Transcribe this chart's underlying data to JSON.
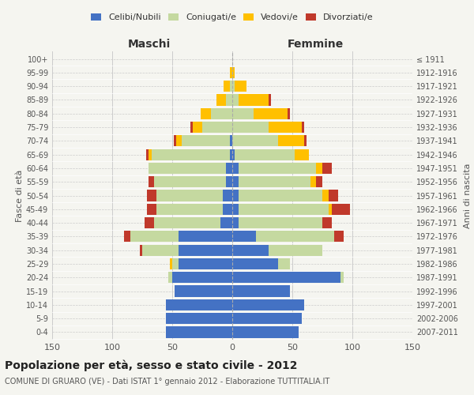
{
  "age_groups": [
    "0-4",
    "5-9",
    "10-14",
    "15-19",
    "20-24",
    "25-29",
    "30-34",
    "35-39",
    "40-44",
    "45-49",
    "50-54",
    "55-59",
    "60-64",
    "65-69",
    "70-74",
    "75-79",
    "80-84",
    "85-89",
    "90-94",
    "95-99",
    "100+"
  ],
  "birth_years": [
    "2007-2011",
    "2002-2006",
    "1997-2001",
    "1992-1996",
    "1987-1991",
    "1982-1986",
    "1977-1981",
    "1972-1976",
    "1967-1971",
    "1962-1966",
    "1957-1961",
    "1952-1956",
    "1947-1951",
    "1942-1946",
    "1937-1941",
    "1932-1936",
    "1927-1931",
    "1922-1926",
    "1917-1921",
    "1912-1916",
    "≤ 1911"
  ],
  "maschi": {
    "celibi": [
      55,
      55,
      55,
      48,
      50,
      45,
      45,
      45,
      10,
      8,
      8,
      5,
      5,
      2,
      2,
      0,
      0,
      0,
      0,
      0,
      0
    ],
    "coniugati": [
      0,
      0,
      0,
      0,
      3,
      5,
      30,
      40,
      55,
      55,
      55,
      60,
      65,
      65,
      40,
      25,
      18,
      5,
      2,
      0,
      0
    ],
    "vedovi": [
      0,
      0,
      0,
      0,
      0,
      2,
      0,
      0,
      0,
      0,
      0,
      0,
      0,
      3,
      5,
      8,
      8,
      8,
      5,
      2,
      0
    ],
    "divorziati": [
      0,
      0,
      0,
      0,
      0,
      0,
      2,
      5,
      8,
      8,
      8,
      5,
      0,
      2,
      2,
      2,
      0,
      0,
      0,
      0,
      0
    ]
  },
  "femmine": {
    "nubili": [
      55,
      58,
      60,
      48,
      90,
      38,
      30,
      20,
      5,
      5,
      5,
      5,
      5,
      2,
      0,
      0,
      0,
      0,
      0,
      0,
      0
    ],
    "coniugate": [
      0,
      0,
      0,
      0,
      3,
      10,
      45,
      65,
      70,
      75,
      70,
      60,
      65,
      50,
      38,
      30,
      18,
      5,
      2,
      0,
      0
    ],
    "vedove": [
      0,
      0,
      0,
      0,
      0,
      0,
      0,
      0,
      0,
      3,
      5,
      5,
      5,
      12,
      22,
      28,
      28,
      25,
      10,
      2,
      0
    ],
    "divorziate": [
      0,
      0,
      0,
      0,
      0,
      0,
      0,
      8,
      8,
      15,
      8,
      5,
      8,
      0,
      2,
      2,
      2,
      2,
      0,
      0,
      0
    ]
  },
  "colors": {
    "celibi": "#4472c4",
    "coniugati": "#c5d9a0",
    "vedovi": "#ffc000",
    "divorziati": "#c0392b"
  },
  "xlim": 150,
  "title": "Popolazione per età, sesso e stato civile - 2012",
  "subtitle": "COMUNE DI GRUARO (VE) - Dati ISTAT 1° gennaio 2012 - Elaborazione TUTTITALIA.IT",
  "xlabel_left": "Maschi",
  "xlabel_right": "Femmine",
  "ylabel_left": "Fasce di età",
  "ylabel_right": "Anni di nascita",
  "bg_color": "#f5f5f0",
  "grid_color": "#cccccc"
}
